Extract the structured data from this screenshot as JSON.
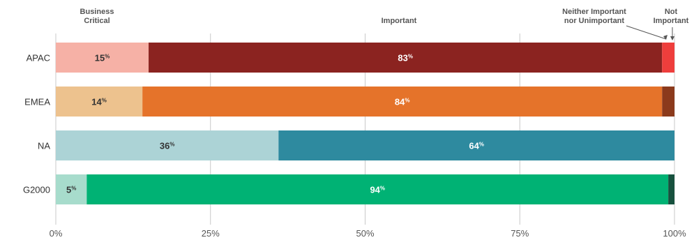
{
  "chart_data": {
    "type": "bar",
    "orientation": "horizontal",
    "stacked": true,
    "categories": [
      "APAC",
      "EMEA",
      "NA",
      "G2000"
    ],
    "series": [
      {
        "name": "Business Critical",
        "values": [
          15,
          14,
          36,
          5
        ],
        "labels": [
          "15",
          "14",
          "36",
          "5"
        ]
      },
      {
        "name": "Important",
        "values": [
          83,
          84,
          64,
          94
        ],
        "labels": [
          "83",
          "84",
          "64",
          "94"
        ]
      },
      {
        "name": "Neither Important nor Unimportant",
        "values": [
          2,
          0,
          0,
          0
        ]
      },
      {
        "name": "Not Important",
        "values": [
          0.5,
          5.5,
          1.2,
          1.5
        ]
      }
    ],
    "header_labels": [
      "Business\nCritical",
      "Important",
      "Neither Important\nnor Unimportant",
      "Not\nImportant"
    ],
    "value_suffix": "%",
    "x_ticks": [
      "0%",
      "25%",
      "50%",
      "75%",
      "100%"
    ],
    "xlim": [
      0,
      100
    ],
    "grid": true,
    "colors": {
      "APAC": [
        "#f6b1a6",
        "#8b2320",
        "#ee3e3c",
        "#6e1a12"
      ],
      "EMEA": [
        "#edc28e",
        "#e5732a",
        "#e5732a",
        "#8b3a1c"
      ],
      "NA": [
        "#acd3d6",
        "#2e8a9f",
        "#2e8a9f",
        "#164d57"
      ],
      "G2000": [
        "#a7dccc",
        "#00b274",
        "#00b274",
        "#17513e"
      ],
      "label_dark": "#333333",
      "label_light": "#ffffff",
      "grid": "#c8c8c8",
      "header_text": "#555555"
    }
  }
}
